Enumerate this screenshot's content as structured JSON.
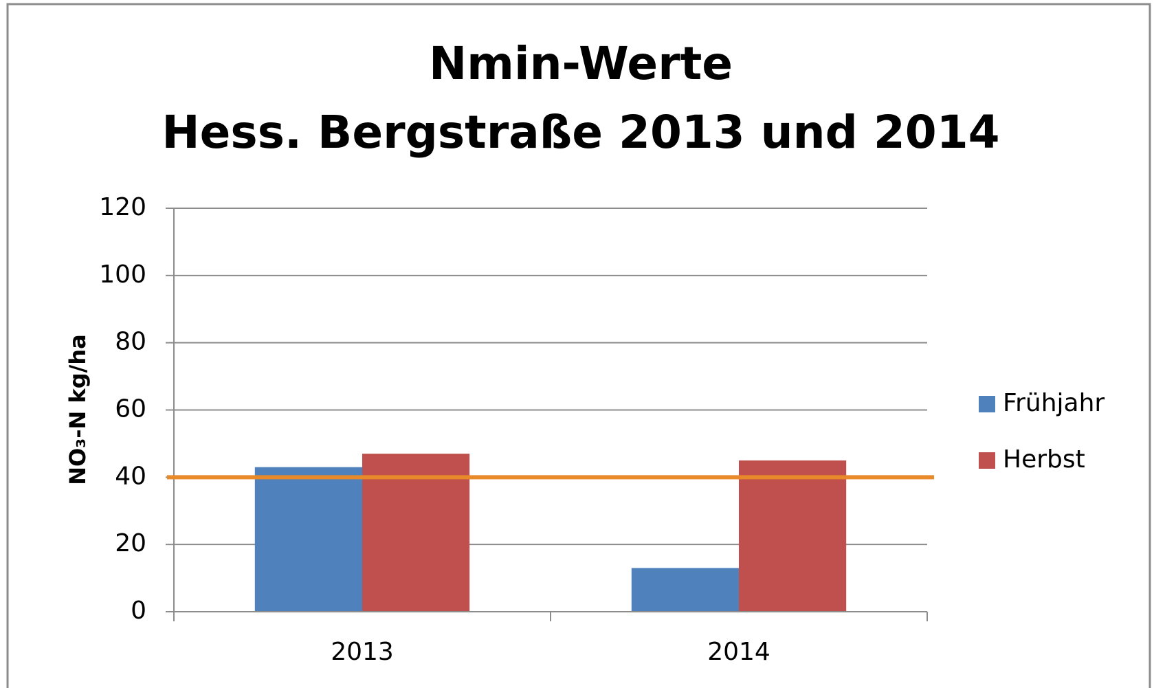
{
  "chart_data": {
    "type": "bar",
    "title": [
      "Nmin-Werte",
      "Hess. Bergstraße 2013 und 2014"
    ],
    "y_label": "NO₃-N kg/ha",
    "categories": [
      "2013",
      "2014"
    ],
    "series": [
      {
        "name": "Frühjahr",
        "color": "#4f81bd",
        "values": [
          43,
          13
        ]
      },
      {
        "name": "Herbst",
        "color": "#c0504d",
        "values": [
          47,
          45
        ]
      }
    ],
    "reference_line": {
      "value": 40,
      "color": "#e8892a"
    },
    "ylim": [
      0,
      120
    ],
    "yticks": [
      0,
      20,
      40,
      60,
      80,
      100,
      120
    ],
    "grid": true,
    "legend": "right"
  }
}
